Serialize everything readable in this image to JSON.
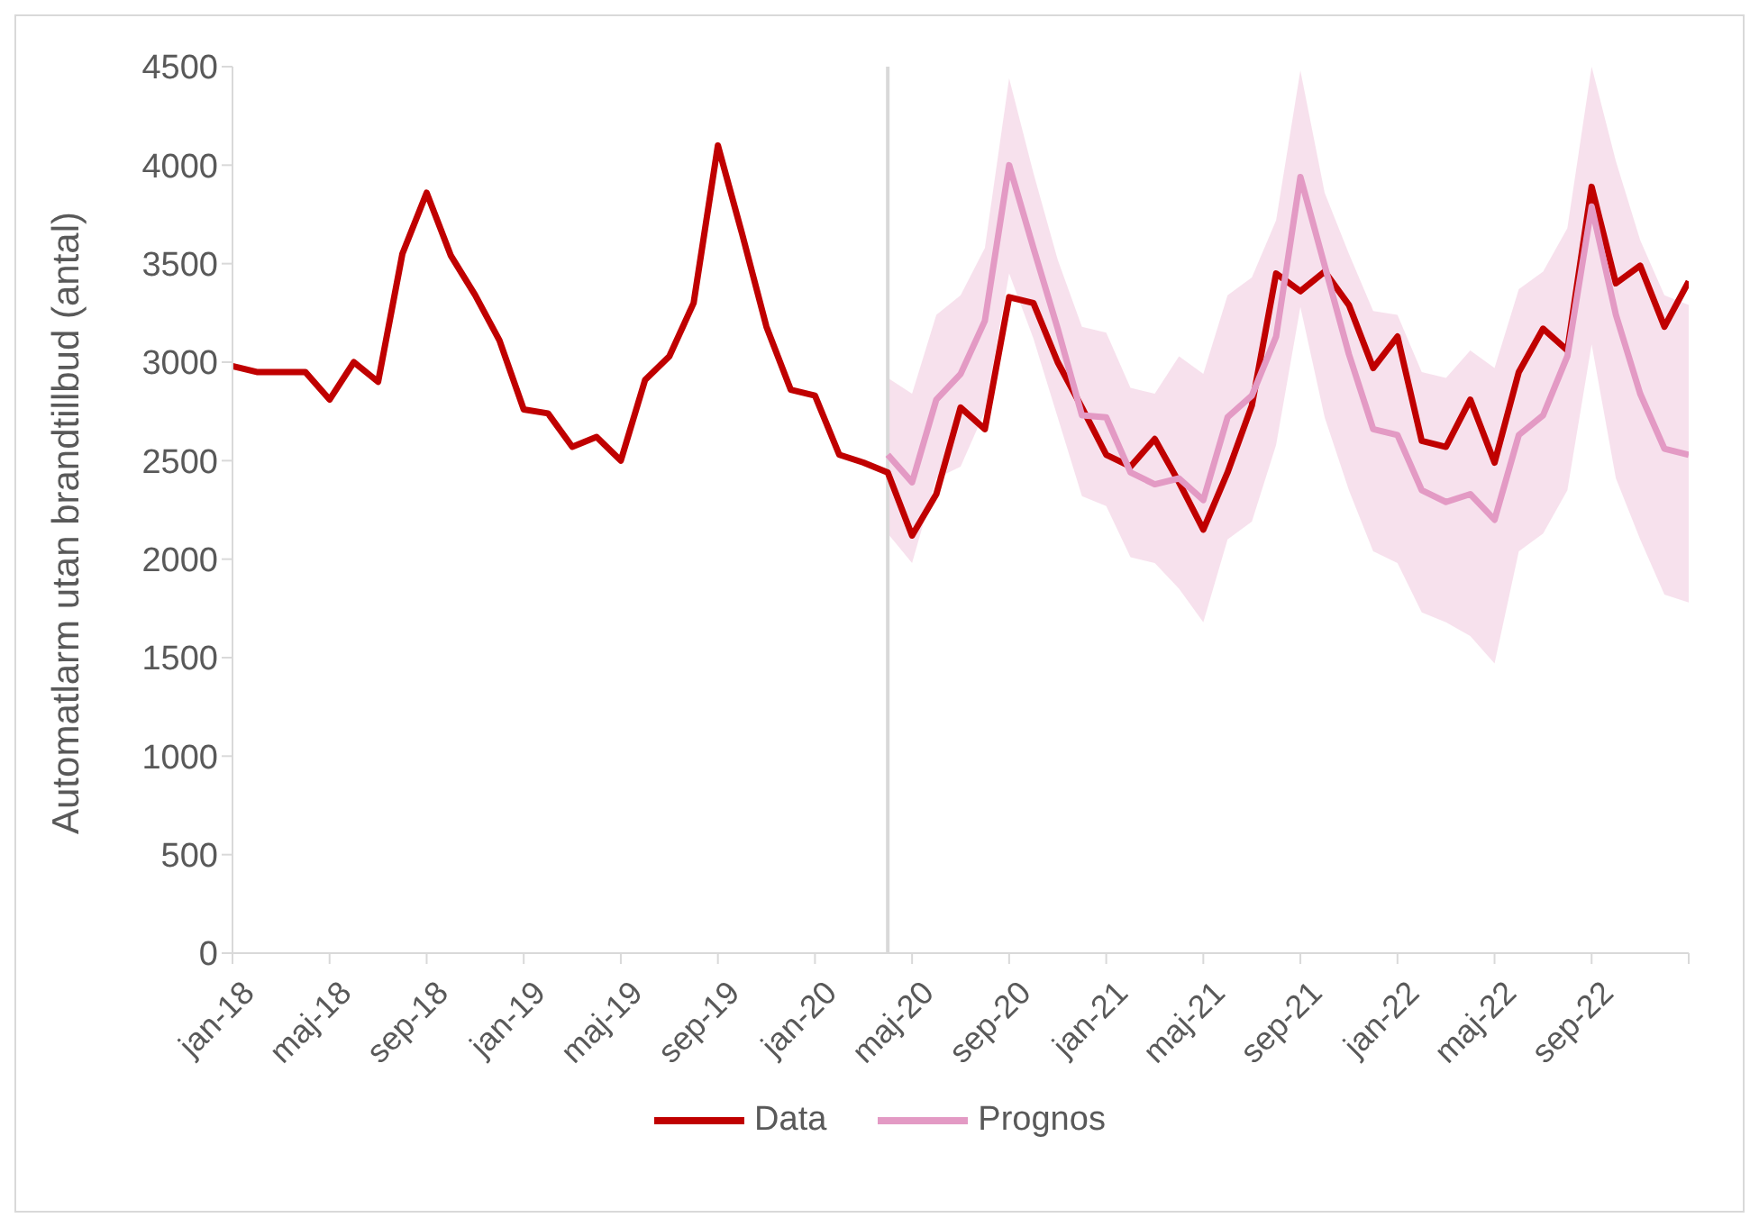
{
  "chart_data": {
    "type": "line",
    "ylabel": "Automatlarm utan brandtillbud (antal)",
    "x": [
      "2018-01",
      "2018-02",
      "2018-03",
      "2018-04",
      "2018-05",
      "2018-06",
      "2018-07",
      "2018-08",
      "2018-09",
      "2018-10",
      "2018-11",
      "2018-12",
      "2019-01",
      "2019-02",
      "2019-03",
      "2019-04",
      "2019-05",
      "2019-06",
      "2019-07",
      "2019-08",
      "2019-09",
      "2019-10",
      "2019-11",
      "2019-12",
      "2020-01",
      "2020-02",
      "2020-03",
      "2020-04",
      "2020-05",
      "2020-06",
      "2020-07",
      "2020-08",
      "2020-09",
      "2020-10",
      "2020-11",
      "2020-12",
      "2021-01",
      "2021-02",
      "2021-03",
      "2021-04",
      "2021-05",
      "2021-06",
      "2021-07",
      "2021-08",
      "2021-09",
      "2021-10",
      "2021-11",
      "2021-12",
      "2022-01",
      "2022-02",
      "2022-03",
      "2022-04",
      "2022-05",
      "2022-06",
      "2022-07",
      "2022-08",
      "2022-09",
      "2022-10",
      "2022-11",
      "2022-12",
      "2023-01"
    ],
    "series": [
      {
        "name": "Data",
        "color": "#c00000",
        "values": [
          2980,
          2950,
          2950,
          2950,
          2810,
          3000,
          2900,
          3550,
          3860,
          3540,
          3340,
          3110,
          2760,
          2740,
          2570,
          2620,
          2500,
          2910,
          3030,
          3300,
          4100,
          3650,
          3180,
          2860,
          2830,
          2530,
          2490,
          2440,
          2120,
          2330,
          2770,
          2660,
          3330,
          3300,
          3000,
          2770,
          2530,
          2470,
          2610,
          2390,
          2150,
          2440,
          2780,
          3450,
          3360,
          3460,
          3290,
          2970,
          3130,
          2600,
          2570,
          2810,
          2490,
          2950,
          3170,
          3060,
          3890,
          3400,
          3490,
          3180,
          3410
        ]
      },
      {
        "name": "Prognos",
        "color": "#e39ac4",
        "values": [
          null,
          null,
          null,
          null,
          null,
          null,
          null,
          null,
          null,
          null,
          null,
          null,
          null,
          null,
          null,
          null,
          null,
          null,
          null,
          null,
          null,
          null,
          null,
          null,
          null,
          null,
          null,
          2530,
          2390,
          2810,
          2940,
          3210,
          4000,
          3580,
          3170,
          2730,
          2720,
          2440,
          2380,
          2410,
          2300,
          2720,
          2830,
          3130,
          3940,
          3490,
          3040,
          2660,
          2630,
          2350,
          2290,
          2330,
          2200,
          2630,
          2730,
          3030,
          3790,
          3240,
          2840,
          2560,
          2530
        ],
        "lower": [
          null,
          null,
          null,
          null,
          null,
          null,
          null,
          null,
          null,
          null,
          null,
          null,
          null,
          null,
          null,
          null,
          null,
          null,
          null,
          null,
          null,
          null,
          null,
          null,
          null,
          null,
          null,
          2130,
          1980,
          2410,
          2470,
          2750,
          3450,
          3120,
          2720,
          2320,
          2270,
          2010,
          1980,
          1850,
          1680,
          2100,
          2190,
          2580,
          3280,
          2720,
          2350,
          2040,
          1980,
          1730,
          1680,
          1610,
          1470,
          2040,
          2130,
          2350,
          3090,
          2410,
          2100,
          1820,
          1780
        ],
        "upper": [
          null,
          null,
          null,
          null,
          null,
          null,
          null,
          null,
          null,
          null,
          null,
          null,
          null,
          null,
          null,
          null,
          null,
          null,
          null,
          null,
          null,
          null,
          null,
          null,
          null,
          null,
          null,
          2920,
          2840,
          3240,
          3340,
          3580,
          4440,
          3960,
          3520,
          3180,
          3150,
          2870,
          2840,
          3030,
          2940,
          3340,
          3430,
          3720,
          4480,
          3860,
          3550,
          3260,
          3240,
          2950,
          2920,
          3060,
          2970,
          3370,
          3460,
          3680,
          4500,
          4020,
          3620,
          3340,
          3290
        ]
      }
    ],
    "xlim": [
      "2018-01",
      "2023-01"
    ],
    "xticks": [
      {
        "value": "2018-01",
        "label": "jan-18"
      },
      {
        "value": "2018-05",
        "label": "maj-18"
      },
      {
        "value": "2018-09",
        "label": "sep-18"
      },
      {
        "value": "2019-01",
        "label": "jan-19"
      },
      {
        "value": "2019-05",
        "label": "maj-19"
      },
      {
        "value": "2019-09",
        "label": "sep-19"
      },
      {
        "value": "2020-01",
        "label": "jan-20"
      },
      {
        "value": "2020-05",
        "label": "maj-20"
      },
      {
        "value": "2020-09",
        "label": "sep-20"
      },
      {
        "value": "2021-01",
        "label": "jan-21"
      },
      {
        "value": "2021-05",
        "label": "maj-21"
      },
      {
        "value": "2021-09",
        "label": "sep-21"
      },
      {
        "value": "2022-01",
        "label": "jan-22"
      },
      {
        "value": "2022-05",
        "label": "maj-22"
      },
      {
        "value": "2022-09",
        "label": "sep-22"
      },
      {
        "value": "2023-01",
        "label": null
      }
    ],
    "ylim": [
      0,
      4500
    ],
    "yticks": [
      0,
      500,
      1000,
      1500,
      2000,
      2500,
      3000,
      3500,
      4000,
      4500
    ],
    "ref_lines": [
      {
        "axis": "x",
        "value": "2020-04",
        "color": "#d9d9d9"
      }
    ],
    "grid": false,
    "legend": "bottom",
    "marker": "none",
    "line_style": "solid"
  }
}
